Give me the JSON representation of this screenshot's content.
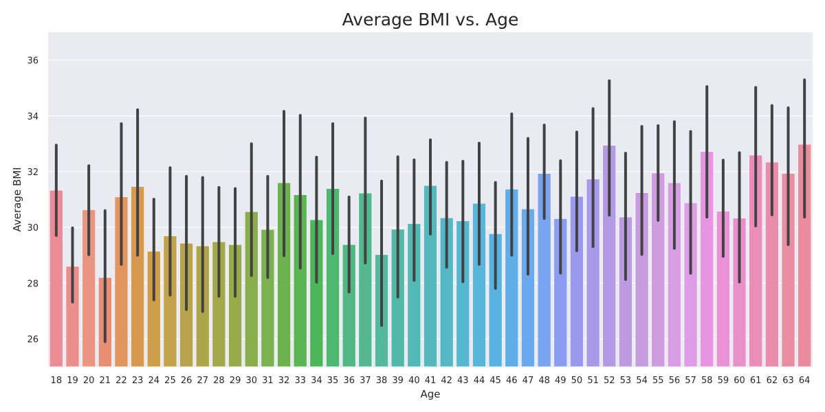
{
  "chart_data": {
    "type": "bar",
    "title": "Average BMI vs. Age",
    "xlabel": "Age",
    "ylabel": "Average BMI",
    "ylim": [
      25.0,
      37.0
    ],
    "yticks": [
      26,
      28,
      30,
      32,
      34,
      36
    ],
    "grid": true,
    "categories": [
      "18",
      "19",
      "20",
      "21",
      "22",
      "23",
      "24",
      "25",
      "26",
      "27",
      "28",
      "29",
      "30",
      "31",
      "32",
      "33",
      "34",
      "35",
      "36",
      "37",
      "38",
      "39",
      "40",
      "41",
      "42",
      "43",
      "44",
      "45",
      "46",
      "47",
      "48",
      "49",
      "50",
      "51",
      "52",
      "53",
      "54",
      "55",
      "56",
      "57",
      "58",
      "59",
      "60",
      "61",
      "62",
      "63",
      "64"
    ],
    "values": [
      31.33,
      28.6,
      30.63,
      28.2,
      31.09,
      31.46,
      29.14,
      29.69,
      29.43,
      29.33,
      29.48,
      29.38,
      30.56,
      29.92,
      31.6,
      31.17,
      30.27,
      31.39,
      29.38,
      31.23,
      29.02,
      29.93,
      30.13,
      31.5,
      30.34,
      30.23,
      30.86,
      29.77,
      31.37,
      30.66,
      31.93,
      30.31,
      31.11,
      31.73,
      32.94,
      30.37,
      31.24,
      31.95,
      31.6,
      30.88,
      32.72,
      30.58,
      30.33,
      32.59,
      32.34,
      31.93,
      32.98
    ],
    "ci_low": [
      29.71,
      27.32,
      29.02,
      25.9,
      28.67,
      29.0,
      27.4,
      27.57,
      27.05,
      26.98,
      27.53,
      27.53,
      28.27,
      28.2,
      28.98,
      28.54,
      28.03,
      29.06,
      27.68,
      28.72,
      26.48,
      27.5,
      28.1,
      29.76,
      28.57,
      28.05,
      28.67,
      27.81,
      29.0,
      28.32,
      30.32,
      28.36,
      29.16,
      29.31,
      30.44,
      28.13,
      29.03,
      30.25,
      29.25,
      28.35,
      30.37,
      28.96,
      28.04,
      30.05,
      30.45,
      29.38,
      30.37
    ],
    "ci_high": [
      32.95,
      29.98,
      32.21,
      30.6,
      33.72,
      34.22,
      31.01,
      32.14,
      31.83,
      31.79,
      31.43,
      31.39,
      33.0,
      31.83,
      34.16,
      34.02,
      32.52,
      33.72,
      31.09,
      33.92,
      31.66,
      32.53,
      32.42,
      33.14,
      32.33,
      32.37,
      33.02,
      31.61,
      34.07,
      33.19,
      33.67,
      32.39,
      33.42,
      34.26,
      35.26,
      32.66,
      33.62,
      33.65,
      33.79,
      33.44,
      35.05,
      32.41,
      32.68,
      35.02,
      34.37,
      34.29,
      35.29
    ],
    "colors": [
      "#ec8c99",
      "#ea8f8e",
      "#e99582",
      "#e88f73",
      "#e2955e",
      "#d9984f",
      "#cf9e48",
      "#c4a14a",
      "#b9a34c",
      "#aea54b",
      "#a3a84a",
      "#98ab4b",
      "#8bae4d",
      "#7cb14f",
      "#6cb24e",
      "#5bb552",
      "#4db65b",
      "#4fb76f",
      "#52b782",
      "#52b890",
      "#53b89e",
      "#52b9a9",
      "#53b9b4",
      "#54b9bd",
      "#55b8c7",
      "#56b7d0",
      "#57b6da",
      "#59b3e2",
      "#5faeea",
      "#6aa9ef",
      "#7aa3f2",
      "#8a9df2",
      "#999aef",
      "#a79ae9",
      "#b39ae4",
      "#bd9be1",
      "#c69cdf",
      "#cf9ce0",
      "#d89de2",
      "#e09ce6",
      "#e695e2",
      "#e992d6",
      "#ea90c8",
      "#ea8eb9",
      "#ea8cab",
      "#ea8ca2",
      "#ea8c9b"
    ]
  }
}
